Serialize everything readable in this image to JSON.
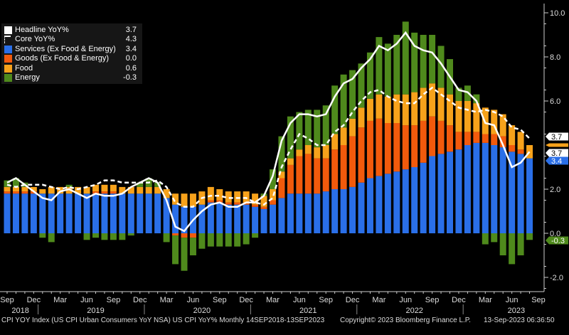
{
  "chart_data": {
    "type": "bar",
    "subtype": "stacked bar with line overlays",
    "x": [
      "Sep 2018",
      "Oct 2018",
      "Nov 2018",
      "Dec 2018",
      "Jan 2019",
      "Feb 2019",
      "Mar 2019",
      "Apr 2019",
      "May 2019",
      "Jun 2019",
      "Jul 2019",
      "Aug 2019",
      "Sep 2019",
      "Oct 2019",
      "Nov 2019",
      "Dec 2019",
      "Jan 2020",
      "Feb 2020",
      "Mar 2020",
      "Apr 2020",
      "May 2020",
      "Jun 2020",
      "Jul 2020",
      "Aug 2020",
      "Sep 2020",
      "Oct 2020",
      "Nov 2020",
      "Dec 2020",
      "Jan 2021",
      "Feb 2021",
      "Mar 2021",
      "Apr 2021",
      "May 2021",
      "Jun 2021",
      "Jul 2021",
      "Aug 2021",
      "Sep 2021",
      "Oct 2021",
      "Nov 2021",
      "Dec 2021",
      "Jan 2022",
      "Feb 2022",
      "Mar 2022",
      "Apr 2022",
      "May 2022",
      "Jun 2022",
      "Jul 2022",
      "Aug 2022",
      "Sep 2022",
      "Oct 2022",
      "Nov 2022",
      "Dec 2022",
      "Jan 2023",
      "Feb 2023",
      "Mar 2023",
      "Apr 2023",
      "May 2023",
      "Jun 2023",
      "Jul 2023",
      "Aug 2023"
    ],
    "series": [
      {
        "name": "Headline YoY%",
        "kind": "line",
        "style": "solid",
        "color": "#ffffff",
        "last": "3.7",
        "values": [
          2.3,
          2.5,
          2.2,
          1.9,
          1.6,
          1.5,
          1.9,
          2.0,
          1.8,
          1.6,
          1.8,
          1.7,
          1.7,
          1.8,
          2.1,
          2.3,
          2.5,
          2.3,
          1.5,
          0.3,
          0.1,
          0.6,
          1.0,
          1.3,
          1.4,
          1.2,
          1.2,
          1.4,
          1.4,
          1.7,
          2.6,
          4.2,
          5.0,
          5.4,
          5.4,
          5.3,
          5.4,
          6.2,
          6.8,
          7.0,
          7.5,
          7.9,
          8.5,
          8.3,
          8.6,
          9.1,
          8.5,
          8.3,
          8.2,
          7.7,
          7.1,
          6.5,
          6.4,
          6.0,
          5.0,
          4.9,
          4.0,
          3.0,
          3.2,
          3.7
        ]
      },
      {
        "name": "Core YoY%",
        "kind": "line",
        "style": "dashed",
        "color": "#ffffff",
        "last": "4.3",
        "values": [
          2.2,
          2.1,
          2.2,
          2.2,
          2.2,
          2.1,
          2.0,
          2.1,
          2.0,
          2.1,
          2.2,
          2.4,
          2.4,
          2.3,
          2.3,
          2.3,
          2.3,
          2.4,
          2.1,
          1.4,
          1.2,
          1.2,
          1.6,
          1.7,
          1.7,
          1.6,
          1.6,
          1.6,
          1.4,
          1.3,
          1.6,
          3.0,
          3.8,
          4.5,
          4.3,
          4.0,
          4.0,
          4.6,
          4.9,
          5.5,
          6.0,
          6.4,
          6.5,
          6.2,
          6.0,
          5.9,
          5.9,
          6.3,
          6.6,
          6.3,
          6.0,
          5.7,
          5.6,
          5.5,
          5.6,
          5.5,
          5.3,
          4.8,
          4.7,
          4.3
        ]
      },
      {
        "name": "Services (Ex Food & Energy)",
        "kind": "bar",
        "color": "#2a6fe8",
        "last": "3.4",
        "values": [
          1.8,
          1.8,
          1.8,
          1.8,
          1.8,
          1.8,
          1.8,
          1.8,
          1.8,
          1.8,
          1.8,
          1.8,
          1.8,
          1.8,
          1.8,
          1.8,
          1.8,
          1.8,
          1.6,
          1.3,
          1.2,
          1.2,
          1.3,
          1.4,
          1.4,
          1.3,
          1.3,
          1.3,
          1.2,
          1.1,
          1.3,
          1.6,
          1.8,
          1.8,
          1.8,
          1.8,
          1.9,
          2.0,
          2.0,
          2.1,
          2.3,
          2.5,
          2.6,
          2.7,
          2.8,
          2.9,
          3.0,
          3.2,
          3.5,
          3.6,
          3.7,
          3.8,
          4.0,
          4.1,
          4.1,
          4.0,
          3.9,
          3.7,
          3.6,
          3.4
        ]
      },
      {
        "name": "Goods (Ex Food & Energy)",
        "kind": "bar",
        "color": "#f25a0c",
        "last": "0.0",
        "values": [
          0.1,
          0.1,
          0.1,
          0.1,
          0.0,
          0.0,
          0.0,
          0.0,
          0.0,
          0.0,
          0.1,
          0.1,
          0.1,
          0.0,
          0.0,
          0.0,
          0.0,
          0.0,
          0.0,
          -0.1,
          -0.2,
          -0.2,
          0.0,
          0.1,
          0.1,
          0.1,
          0.1,
          0.1,
          0.1,
          0.1,
          0.2,
          0.9,
          1.3,
          1.7,
          1.8,
          1.6,
          1.5,
          1.8,
          2.0,
          2.3,
          2.5,
          2.6,
          2.6,
          2.3,
          2.2,
          2.0,
          1.9,
          1.9,
          1.8,
          1.5,
          1.2,
          0.8,
          0.6,
          0.5,
          0.4,
          0.5,
          0.5,
          0.3,
          0.2,
          0.0
        ]
      },
      {
        "name": "Food",
        "kind": "bar",
        "color": "#f7a21b",
        "last": "0.6",
        "values": [
          0.2,
          0.2,
          0.2,
          0.2,
          0.2,
          0.3,
          0.3,
          0.3,
          0.3,
          0.3,
          0.3,
          0.3,
          0.3,
          0.3,
          0.3,
          0.3,
          0.3,
          0.3,
          0.4,
          0.5,
          0.6,
          0.6,
          0.6,
          0.6,
          0.5,
          0.5,
          0.5,
          0.5,
          0.5,
          0.5,
          0.5,
          0.3,
          0.3,
          0.3,
          0.4,
          0.5,
          0.6,
          0.7,
          0.8,
          0.8,
          0.9,
          1.0,
          1.1,
          1.2,
          1.3,
          1.4,
          1.5,
          1.5,
          1.5,
          1.5,
          1.4,
          1.4,
          1.4,
          1.3,
          1.2,
          1.1,
          1.0,
          0.9,
          0.8,
          0.6
        ]
      },
      {
        "name": "Energy",
        "kind": "bar",
        "color": "#4f8a1c",
        "last": "-0.3",
        "values": [
          0.3,
          0.4,
          0.2,
          0.0,
          -0.2,
          -0.4,
          0.0,
          0.1,
          0.0,
          -0.3,
          -0.2,
          -0.3,
          -0.3,
          -0.3,
          -0.1,
          0.2,
          0.4,
          0.2,
          -0.4,
          -1.3,
          -1.5,
          -0.8,
          -0.7,
          -0.6,
          -0.6,
          -0.6,
          -0.6,
          -0.5,
          -0.2,
          0.1,
          0.9,
          1.6,
          1.9,
          1.7,
          1.6,
          1.7,
          1.8,
          2.2,
          2.4,
          2.2,
          2.0,
          2.1,
          2.6,
          2.4,
          2.7,
          3.3,
          2.7,
          2.4,
          2.2,
          1.9,
          1.6,
          0.6,
          0.7,
          0.4,
          -0.5,
          -0.4,
          -1.0,
          -1.4,
          -1.0,
          -0.3
        ]
      }
    ],
    "ylim": [
      -2.8,
      10.2
    ],
    "yticks": [
      "10.0",
      "8.0",
      "6.0",
      "4.0",
      "2.0",
      "0.0",
      "-2.0"
    ],
    "y_axis_side": "right",
    "xtick_labels": [
      "Sep",
      "Dec",
      "Mar",
      "Jun",
      "Sep",
      "Dec",
      "Mar",
      "Jun",
      "Sep",
      "Dec",
      "Mar",
      "Jun",
      "Sep",
      "Dec",
      "Mar",
      "Jun",
      "Sep",
      "Dec",
      "Mar",
      "Jun",
      "Sep"
    ],
    "year_labels": [
      "2018",
      "2019",
      "2020",
      "2021",
      "2022",
      "2023"
    ],
    "grid": false,
    "legend_placement": "top-left",
    "badge_colors": {
      "headline": "#ffffff",
      "core": "#ffffff",
      "services": "#2a6fe8",
      "goods": "#f25a0c",
      "food": "#f7a21b",
      "energy": "#4f8a1c"
    }
  },
  "footer": {
    "source": "CPI YOY Index (US CPI Urban Consumers YoY NSA) US CPI YoY%  Monthly 14SEP2018-13SEP2023",
    "copyright": "Copyright© 2023 Bloomberg Finance L.P.",
    "timestamp": "13-Sep-2023 06:36:50"
  }
}
